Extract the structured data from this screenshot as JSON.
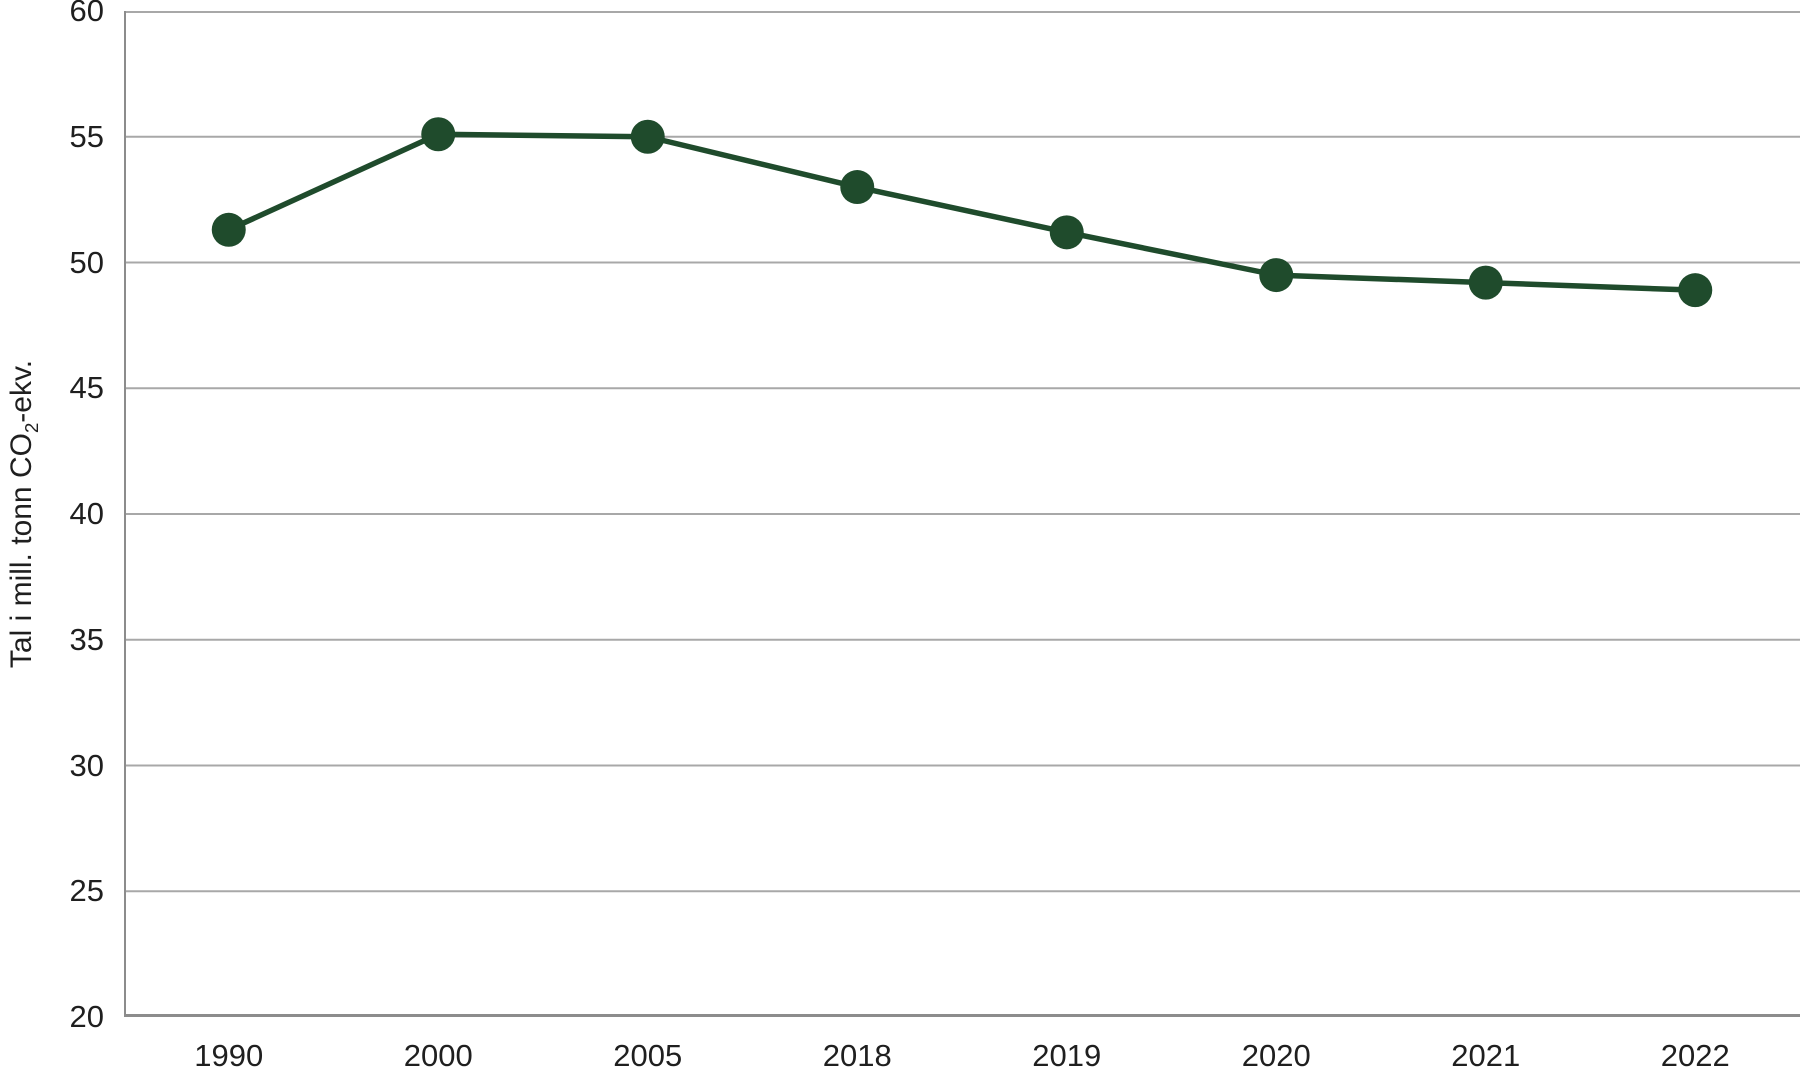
{
  "chart_data": {
    "type": "line",
    "title": "",
    "categories": [
      "1990",
      "2000",
      "2005",
      "2018",
      "2019",
      "2020",
      "2021",
      "2022"
    ],
    "values": [
      51.3,
      55.1,
      55.0,
      53.0,
      51.2,
      49.5,
      49.2,
      48.9
    ],
    "xlabel": "",
    "ylabel": "Tal i mill. tonn CO₂-ekv.",
    "ylabel_parts": {
      "prefix": "Tal i mill. tonn CO",
      "subscript": "2",
      "suffix": "-ekv."
    },
    "ylim": [
      20,
      60
    ],
    "yticks": [
      20,
      25,
      30,
      35,
      40,
      45,
      50,
      55,
      60
    ],
    "grid": "horizontal",
    "legend_position": "none",
    "marker": "circle",
    "colors": {
      "line": "#1f4b2c",
      "marker": "#1f4b2c",
      "gridline": "#a8a8a8",
      "axis_line": "#8c8c8c",
      "tick_text": "#1f1f1f",
      "background": "#ffffff"
    }
  }
}
